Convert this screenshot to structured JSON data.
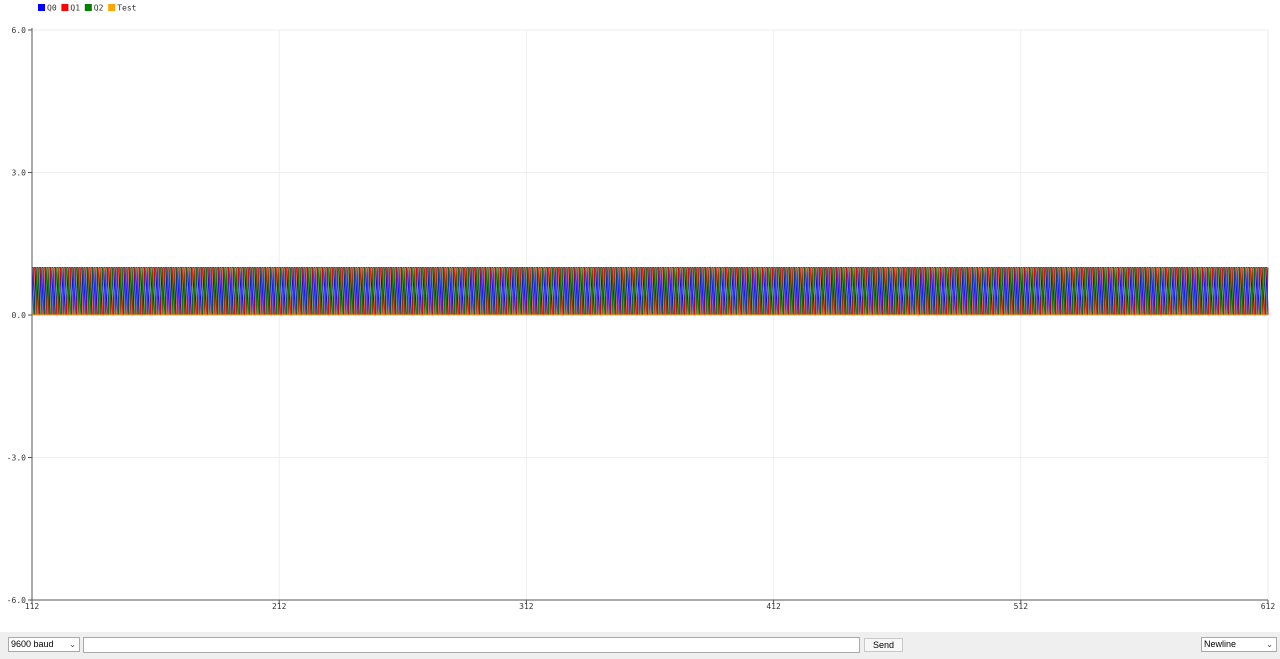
{
  "chart_data": {
    "type": "line",
    "title": "",
    "xlabel": "",
    "ylabel": "",
    "x_range": [
      112,
      612
    ],
    "x_ticks": [
      "112",
      "212",
      "312",
      "412",
      "512",
      "612"
    ],
    "ylim": [
      -6.0,
      6.0
    ],
    "y_ticks": [
      "6.0",
      "3.0",
      "0.0",
      "-3.0",
      "-6.0"
    ],
    "grid": true,
    "legend_position": "top-left",
    "period_samples": 4,
    "series": [
      {
        "name": "Q0",
        "color": "#0000ff",
        "pattern": [
          0,
          1,
          0,
          1
        ],
        "description": "alternates 0,1 every sample"
      },
      {
        "name": "Q1",
        "color": "#ff0000",
        "pattern": [
          0,
          0,
          1,
          1
        ],
        "description": "period 4 samples"
      },
      {
        "name": "Q2",
        "color": "#008000",
        "pattern": [
          1,
          1,
          0,
          0
        ],
        "description": "period 4 samples"
      },
      {
        "name": "Test",
        "color": "#ffa500",
        "pattern": [
          0,
          0,
          0,
          0
        ],
        "description": "constant 0"
      }
    ]
  },
  "controls": {
    "baud": "9600 baud",
    "message_value": "",
    "send_label": "Send",
    "line_ending": "Newline"
  },
  "icons": {
    "dropdown_chevron": "chevron-down-icon"
  }
}
